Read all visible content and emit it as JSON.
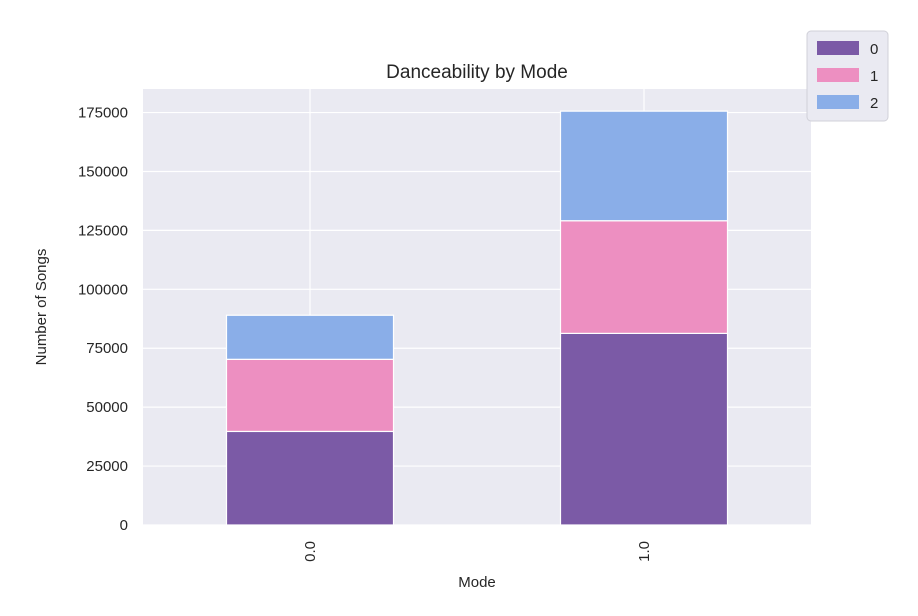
{
  "chart_data": {
    "type": "bar",
    "stacked": true,
    "title": "Danceability by Mode",
    "xlabel": "Mode",
    "ylabel": "Number of Songs",
    "categories": [
      "0.0",
      "1.0"
    ],
    "series": [
      {
        "name": "0",
        "values": [
          39700,
          81300
        ],
        "color": "#7b5aa6"
      },
      {
        "name": "1",
        "values": [
          30600,
          47800
        ],
        "color": "#ed8fc1"
      },
      {
        "name": "2",
        "values": [
          18700,
          46500
        ],
        "color": "#8aaee8"
      }
    ],
    "ylim": [
      0,
      185000
    ],
    "yticks": [
      0,
      25000,
      50000,
      75000,
      100000,
      125000,
      150000,
      175000
    ],
    "ytick_labels": [
      "0",
      "25000",
      "50000",
      "75000",
      "100000",
      "125000",
      "150000",
      "175000"
    ],
    "grid": true,
    "legend_position": "top-right",
    "background_color": "#eaeaf2"
  }
}
